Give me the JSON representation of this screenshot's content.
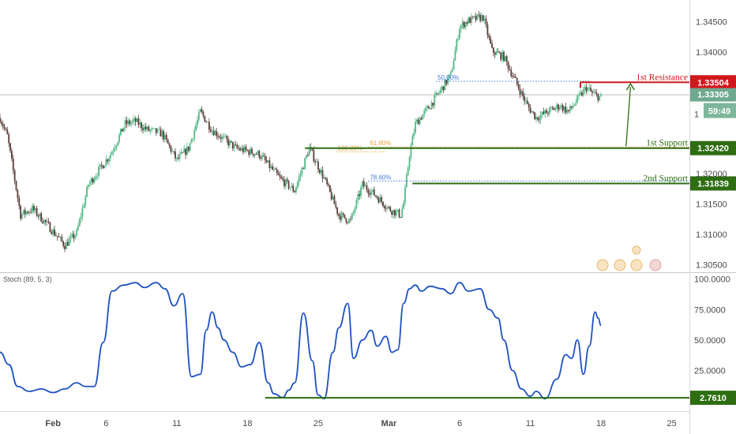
{
  "colors": {
    "up": "#53b987",
    "down": "#5a3e3a",
    "resistance": "#d0181c",
    "support": "#2e6d12",
    "stoch_line": "#1f52c2",
    "fib_blue": "#3d7bd9",
    "fib_orange": "#e8a33d",
    "axis_text": "#4a4a4a",
    "price_badge": "#6ea88f",
    "timer_badge": "#7db69a",
    "divider": "#c9c9c9"
  },
  "chart_data": [
    {
      "type": "candlestick",
      "panel": "price",
      "symbol_note": "hourly candles",
      "x_unit": "trading hour index (0 = Jan 30, 24 per trading day)",
      "ylim": [
        1.3043,
        1.3478
      ],
      "ytick_labels": [
        "1.34500",
        "1.34000",
        "1.32000",
        "1.31500",
        "1.31000",
        "1.30500"
      ],
      "ytick_values": [
        1.345,
        1.34,
        1.32,
        1.315,
        1.31,
        1.305
      ],
      "xtick_labels": [
        "Feb",
        "6",
        "11",
        "18",
        "25",
        "Mar",
        "6",
        "11",
        "18",
        "25"
      ],
      "xtick_values": [
        36,
        72,
        120,
        168,
        216,
        264,
        312,
        360,
        408,
        456
      ],
      "current_price": "1.33305",
      "timer": "59:49",
      "anchors": [
        [
          0,
          1.3292
        ],
        [
          5,
          1.3262
        ],
        [
          14,
          1.3132
        ],
        [
          22,
          1.3142
        ],
        [
          30,
          1.3122
        ],
        [
          44,
          1.3082
        ],
        [
          52,
          1.3102
        ],
        [
          60,
          1.3182
        ],
        [
          75,
          1.3232
        ],
        [
          85,
          1.3282
        ],
        [
          92,
          1.3286
        ],
        [
          100,
          1.3272
        ],
        [
          110,
          1.3266
        ],
        [
          120,
          1.3222
        ],
        [
          128,
          1.3242
        ],
        [
          136,
          1.3302
        ],
        [
          144,
          1.3272
        ],
        [
          160,
          1.3242
        ],
        [
          176,
          1.3232
        ],
        [
          190,
          1.3192
        ],
        [
          200,
          1.3172
        ],
        [
          210,
          1.3242
        ],
        [
          220,
          1.3192
        ],
        [
          230,
          1.3132
        ],
        [
          238,
          1.3122
        ],
        [
          246,
          1.3182
        ],
        [
          256,
          1.3162
        ],
        [
          264,
          1.3142
        ],
        [
          272,
          1.3132
        ],
        [
          274,
          1.3152
        ],
        [
          278,
          1.3232
        ],
        [
          282,
          1.3282
        ],
        [
          292,
          1.3312
        ],
        [
          306,
          1.3362
        ],
        [
          312,
          1.3442
        ],
        [
          318,
          1.3452
        ],
        [
          328,
          1.3458
        ],
        [
          334,
          1.3402
        ],
        [
          342,
          1.3392
        ],
        [
          350,
          1.3352
        ],
        [
          358,
          1.3312
        ],
        [
          364,
          1.3292
        ],
        [
          372,
          1.3302
        ],
        [
          380,
          1.3312
        ],
        [
          386,
          1.3302
        ],
        [
          392,
          1.3322
        ],
        [
          398,
          1.3342
        ],
        [
          402,
          1.3332
        ],
        [
          408,
          1.3325
        ]
      ],
      "levels": [
        {
          "name": "1st Resistance",
          "value": "1.33504",
          "price": 1.33504,
          "color_key": "resistance",
          "from_x": 394,
          "to_x": 423
        },
        {
          "name": "1st Support",
          "value": "1.32420",
          "price": 1.3242,
          "color_key": "support",
          "from_x": 207,
          "to_x": 500
        },
        {
          "name": "2nd Support",
          "value": "1.31839",
          "price": 1.31839,
          "color_key": "support",
          "from_x": 280,
          "to_x": 500
        }
      ],
      "fib_levels": [
        {
          "label": "50.00%",
          "price": 1.3352,
          "color_key": "fib_blue",
          "from_x": 296,
          "to_x": 400
        },
        {
          "label": "61.80%",
          "price": 1.3244,
          "color_key": "fib_orange",
          "from_x": 250,
          "to_x": 500
        },
        {
          "label": "100.00%",
          "price": 1.3236,
          "color_key": "fib_orange",
          "from_x": 228,
          "to_x": 262
        },
        {
          "label": "78.60%",
          "price": 1.3188,
          "color_key": "fib_blue",
          "from_x": 250,
          "to_x": 500
        }
      ],
      "arrow": {
        "from": [
          425,
          1.3245
        ],
        "to": [
          428,
          1.3348
        ]
      }
    },
    {
      "type": "line",
      "panel": "indicator",
      "title": "Stoch (89, 5, 3)",
      "ylim": [
        -3,
        101
      ],
      "ytick_labels": [
        "100.0000",
        "75.0000",
        "50.0000",
        "25.0000"
      ],
      "ytick_values": [
        100,
        75,
        50,
        25
      ],
      "current_value": "2.7610",
      "support_line": {
        "value": 2.761,
        "from_x": 180,
        "to_x": 500
      },
      "series": [
        {
          "values": [
            [
              0,
              40
            ],
            [
              6,
              30
            ],
            [
              12,
              12
            ],
            [
              20,
              8
            ],
            [
              28,
              10
            ],
            [
              36,
              7
            ],
            [
              44,
              10
            ],
            [
              52,
              15
            ],
            [
              58,
              12
            ],
            [
              64,
              12
            ],
            [
              70,
              48
            ],
            [
              76,
              90
            ],
            [
              84,
              95
            ],
            [
              92,
              97
            ],
            [
              98,
              93
            ],
            [
              106,
              97
            ],
            [
              112,
              92
            ],
            [
              118,
              78
            ],
            [
              124,
              88
            ],
            [
              130,
              20
            ],
            [
              136,
              22
            ],
            [
              140,
              58
            ],
            [
              144,
              73
            ],
            [
              148,
              60
            ],
            [
              152,
              50
            ],
            [
              158,
              40
            ],
            [
              164,
              28
            ],
            [
              170,
              30
            ],
            [
              176,
              48
            ],
            [
              182,
              15
            ],
            [
              186,
              6
            ],
            [
              192,
              3
            ],
            [
              196,
              9
            ],
            [
              200,
              15
            ],
            [
              206,
              72
            ],
            [
              212,
              33
            ],
            [
              216,
              5
            ],
            [
              220,
              2
            ],
            [
              226,
              40
            ],
            [
              230,
              60
            ],
            [
              236,
              80
            ],
            [
              240,
              35
            ],
            [
              246,
              50
            ],
            [
              252,
              58
            ],
            [
              256,
              45
            ],
            [
              262,
              53
            ],
            [
              266,
              40
            ],
            [
              270,
              42
            ],
            [
              274,
              80
            ],
            [
              278,
              92
            ],
            [
              282,
              95
            ],
            [
              286,
              90
            ],
            [
              292,
              94
            ],
            [
              300,
              92
            ],
            [
              306,
              88
            ],
            [
              312,
              97
            ],
            [
              318,
              90
            ],
            [
              326,
              92
            ],
            [
              332,
              75
            ],
            [
              338,
              68
            ],
            [
              342,
              50
            ],
            [
              348,
              25
            ],
            [
              354,
              10
            ],
            [
              360,
              4
            ],
            [
              364,
              8
            ],
            [
              370,
              2
            ],
            [
              378,
              18
            ],
            [
              384,
              38
            ],
            [
              388,
              35
            ],
            [
              392,
              50
            ],
            [
              396,
              22
            ],
            [
              400,
              45
            ],
            [
              404,
              73
            ],
            [
              406,
              68
            ],
            [
              408,
              62
            ]
          ]
        }
      ]
    }
  ]
}
